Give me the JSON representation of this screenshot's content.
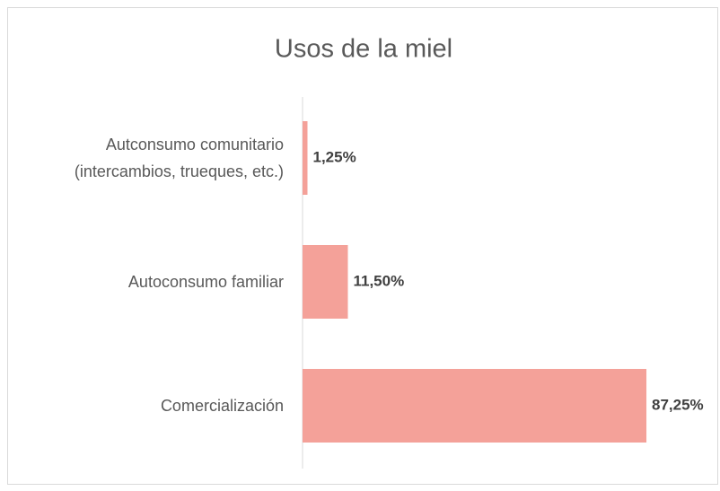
{
  "chart_data": {
    "type": "bar",
    "orientation": "horizontal",
    "title": "Usos de la miel",
    "categories": [
      "Autconsumo comunitario (intercambios, trueques, etc.)",
      "Autoconsumo familiar",
      "Comercialización"
    ],
    "values": [
      1.25,
      11.5,
      87.25
    ],
    "value_labels": [
      "1,25%",
      "11,50%",
      "87,25%"
    ],
    "color": "#f4a199",
    "xlim": [
      0,
      100
    ]
  }
}
